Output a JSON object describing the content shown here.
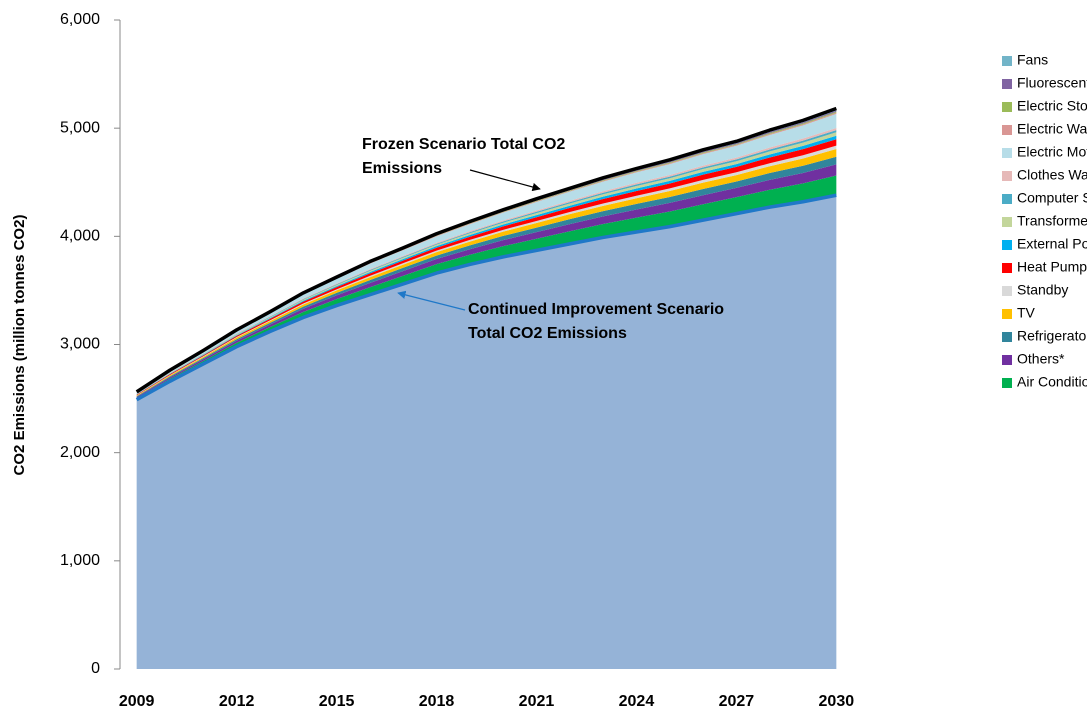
{
  "chart_data": {
    "type": "stacked-area",
    "ylabel": "CO2 Emissions (million tonnes CO2)",
    "x": [
      2009,
      2010,
      2011,
      2012,
      2013,
      2014,
      2015,
      2016,
      2017,
      2018,
      2019,
      2020,
      2021,
      2022,
      2023,
      2024,
      2025,
      2026,
      2027,
      2028,
      2029,
      2030
    ],
    "xlim": [
      2008.5,
      2030.5
    ],
    "xticks": [
      2009,
      2012,
      2015,
      2018,
      2021,
      2024,
      2027,
      2030
    ],
    "ylim": [
      0,
      6000
    ],
    "yticks": [
      0,
      {
        "value": 1000,
        "label": "1,000"
      },
      {
        "value": 2000,
        "label": "2,000"
      },
      {
        "value": 3000,
        "label": "3,000"
      },
      {
        "value": 4000,
        "label": "4,000"
      },
      {
        "value": 5000,
        "label": "5,000"
      },
      {
        "value": 6000,
        "label": "6,000"
      }
    ],
    "base": {
      "color": "#95b3d7",
      "line_color": "#1f78c8",
      "values": [
        2490,
        2660,
        2820,
        2980,
        3120,
        3250,
        3360,
        3460,
        3560,
        3660,
        3740,
        3810,
        3870,
        3930,
        3990,
        4040,
        4090,
        4150,
        4210,
        4270,
        4320,
        4380
      ]
    },
    "total_line_color": "#000000",
    "series": [
      {
        "name": "Air Conditioner",
        "color": "#00b050",
        "values": [
          16,
          23,
          28,
          35,
          41,
          51,
          60,
          69,
          76,
          83,
          90,
          99,
          108,
          117,
          124,
          133,
          140,
          147,
          152,
          161,
          170,
          182
        ]
      },
      {
        "name": "Others*",
        "color": "#7030a0",
        "values": [
          9,
          13,
          16,
          20,
          23,
          29,
          34,
          39,
          43,
          47,
          51,
          56,
          61,
          66,
          70,
          75,
          79,
          83,
          86,
          91,
          96,
          103
        ]
      },
      {
        "name": "Refrigerator",
        "color": "#31859c",
        "values": [
          6,
          9,
          11,
          14,
          16,
          20,
          23,
          27,
          30,
          32,
          35,
          39,
          42,
          46,
          49,
          52,
          55,
          58,
          59,
          63,
          67,
          71
        ]
      },
      {
        "name": "TV",
        "color": "#ffc000",
        "values": [
          6,
          9,
          11,
          14,
          16,
          20,
          23,
          27,
          30,
          32,
          35,
          39,
          42,
          46,
          49,
          52,
          55,
          58,
          59,
          63,
          67,
          71
        ]
      },
      {
        "name": "Standby",
        "color": "#d9d9d9",
        "values": [
          3,
          4,
          5,
          6,
          7,
          9,
          10,
          12,
          13,
          14,
          16,
          17,
          19,
          20,
          22,
          23,
          24,
          26,
          26,
          28,
          30,
          32
        ]
      },
      {
        "name": "Heat Pump Water Heater",
        "color": "#ff0000",
        "values": [
          5,
          8,
          9,
          11,
          14,
          17,
          20,
          23,
          25,
          27,
          29,
          32,
          35,
          38,
          41,
          44,
          46,
          48,
          50,
          53,
          56,
          59
        ]
      },
      {
        "name": "External Power Supply",
        "color": "#00b0f0",
        "values": [
          3,
          4,
          5,
          6,
          7,
          9,
          10,
          12,
          13,
          14,
          16,
          17,
          19,
          20,
          22,
          23,
          24,
          26,
          26,
          28,
          30,
          32
        ]
      },
      {
        "name": "Transformers",
        "color": "#c3d69b",
        "values": [
          3,
          4,
          5,
          6,
          7,
          9,
          10,
          12,
          13,
          14,
          16,
          17,
          19,
          20,
          22,
          23,
          24,
          26,
          26,
          28,
          30,
          32
        ]
      },
      {
        "name": "Computer Servers",
        "color": "#4bacc6",
        "values": [
          2,
          3,
          3,
          4,
          5,
          6,
          7,
          8,
          8,
          9,
          10,
          11,
          12,
          13,
          14,
          15,
          15,
          16,
          17,
          18,
          19,
          20
        ]
      },
      {
        "name": "Clothes Washer",
        "color": "#e6b9b8",
        "values": [
          2,
          3,
          3,
          4,
          5,
          6,
          7,
          8,
          8,
          9,
          10,
          11,
          12,
          13,
          14,
          15,
          15,
          16,
          17,
          18,
          19,
          20
        ]
      },
      {
        "name": "Electric Motors",
        "color": "#b7dde8",
        "values": [
          12,
          17,
          20,
          25,
          30,
          36,
          43,
          50,
          54,
          59,
          64,
          71,
          78,
          84,
          89,
          96,
          101,
          106,
          109,
          116,
          122,
          130
        ]
      },
      {
        "name": "Electric Water Heater",
        "color": "#d99694",
        "values": [
          1,
          1,
          2,
          2,
          2,
          3,
          3,
          4,
          4,
          5,
          5,
          5,
          6,
          6,
          7,
          7,
          8,
          8,
          8,
          9,
          9,
          10
        ]
      },
      {
        "name": "Electric Stove/Cooktop",
        "color": "#9bbb59",
        "values": [
          1,
          1,
          2,
          2,
          2,
          3,
          3,
          4,
          4,
          5,
          5,
          5,
          6,
          6,
          7,
          7,
          8,
          8,
          8,
          9,
          9,
          10
        ]
      },
      {
        "name": "Fluorescent Ballast",
        "color": "#8064a2",
        "values": [
          1,
          1,
          2,
          2,
          2,
          3,
          3,
          4,
          4,
          5,
          5,
          5,
          6,
          6,
          7,
          7,
          8,
          8,
          8,
          9,
          9,
          10
        ]
      },
      {
        "name": "Fans",
        "color": "#72b4c8",
        "values": [
          2,
          3,
          3,
          4,
          5,
          6,
          7,
          8,
          8,
          9,
          10,
          11,
          12,
          13,
          14,
          15,
          15,
          16,
          17,
          18,
          19,
          20
        ]
      }
    ],
    "annotations": [
      {
        "lines": [
          "Frozen Scenario Total CO2",
          "Emissions"
        ],
        "color": "#000000"
      },
      {
        "lines": [
          "Continued Improvement Scenario",
          "Total CO2 Emissions"
        ],
        "color": "#1f78c8"
      }
    ]
  }
}
